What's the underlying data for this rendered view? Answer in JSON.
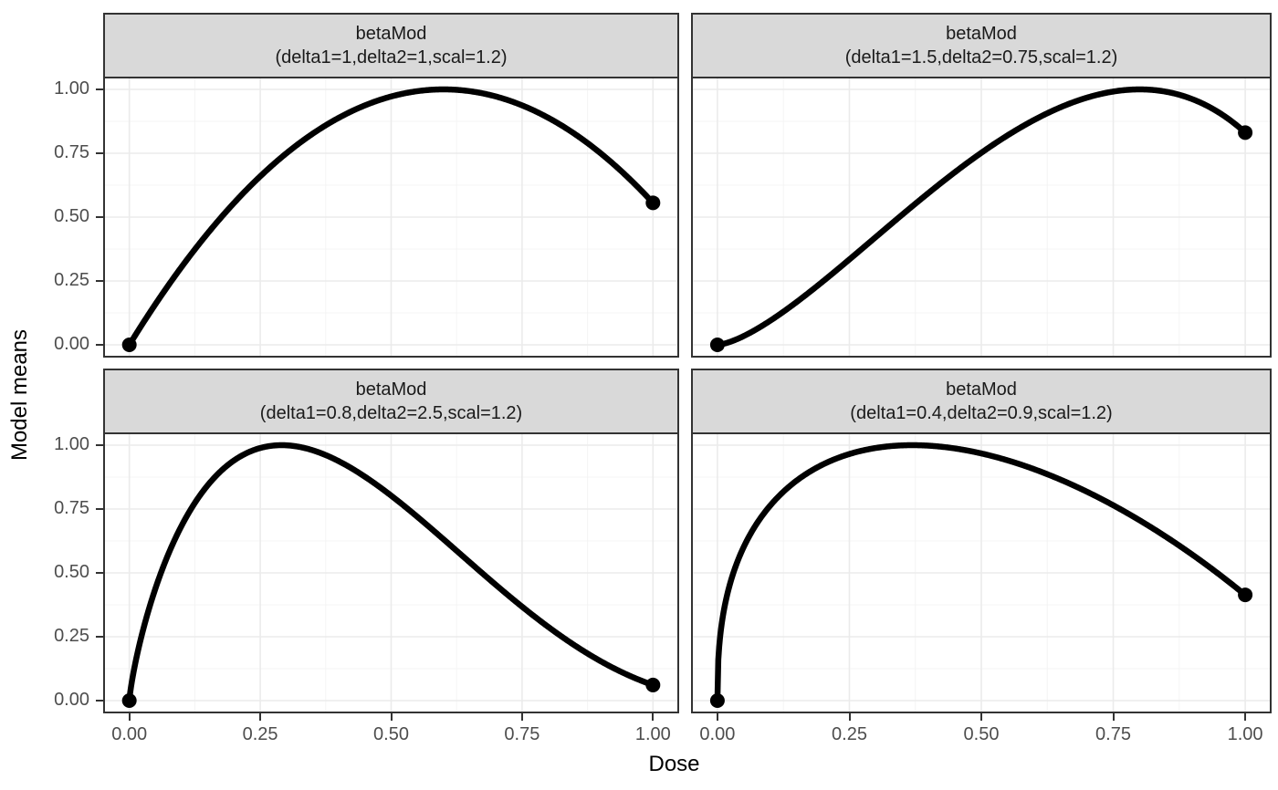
{
  "chart_data": {
    "type": "line",
    "title": "",
    "xlabel": "Dose",
    "ylabel": "Model means",
    "xlim": [
      0,
      1
    ],
    "ylim": [
      0,
      1
    ],
    "x_breaks": [
      0,
      0.25,
      0.5,
      0.75,
      1
    ],
    "y_breaks": [
      0,
      0.25,
      0.5,
      0.75,
      1
    ],
    "minor_breaks": [
      0.125,
      0.375,
      0.625,
      0.875
    ],
    "x_tick_labels": [
      "0.00",
      "0.25",
      "0.50",
      "0.75",
      "1.00"
    ],
    "y_tick_labels": [
      "0.00",
      "0.25",
      "0.50",
      "0.75",
      "1.00"
    ],
    "grid": "major+minor",
    "legend_position": "none",
    "facet_layout": "2x2",
    "facets": [
      {
        "strip_line1": "betaMod",
        "strip_line2": "(delta1=1,delta2=1,scal=1.2)",
        "model": "betaMod",
        "params": {
          "delta1": 1,
          "delta2": 1,
          "scal": 1.2
        },
        "points": [
          [
            0,
            0
          ],
          [
            1,
            0.556
          ]
        ],
        "key_curve_values": {
          "x": [
            0,
            0.25,
            0.5,
            0.75,
            1
          ],
          "y": [
            0,
            0.66,
            0.972,
            0.938,
            0.556
          ]
        },
        "peak": {
          "x": 0.6,
          "y": 1.0
        }
      },
      {
        "strip_line1": "betaMod",
        "strip_line2": "(delta1=1.5,delta2=0.75,scal=1.2)",
        "model": "betaMod",
        "params": {
          "delta1": 1.5,
          "delta2": 0.75,
          "scal": 1.2
        },
        "points": [
          [
            0,
            0
          ],
          [
            1,
            0.831
          ]
        ],
        "key_curve_values": {
          "x": [
            0,
            0.25,
            0.5,
            0.75,
            1
          ],
          "y": [
            0,
            0.334,
            0.752,
            0.992,
            0.831
          ]
        },
        "peak": {
          "x": 0.8,
          "y": 1.0
        }
      },
      {
        "strip_line1": "betaMod",
        "strip_line2": "(delta1=0.8,delta2=2.5,scal=1.2)",
        "model": "betaMod",
        "params": {
          "delta1": 0.8,
          "delta2": 2.5,
          "scal": 1.2
        },
        "points": [
          [
            0,
            0
          ],
          [
            1,
            0.061
          ]
        ],
        "key_curve_values": {
          "x": [
            0,
            0.25,
            0.5,
            0.75,
            1
          ],
          "y": [
            0,
            0.989,
            0.803,
            0.368,
            0.061
          ]
        },
        "peak": {
          "x": 0.291,
          "y": 1.0
        }
      },
      {
        "strip_line1": "betaMod",
        "strip_line2": "(delta1=0.4,delta2=0.9,scal=1.2)",
        "model": "betaMod",
        "params": {
          "delta1": 0.4,
          "delta2": 0.9,
          "scal": 1.2
        },
        "points": [
          [
            0,
            0
          ],
          [
            1,
            0.414
          ]
        ],
        "key_curve_values": {
          "x": [
            0,
            0.25,
            0.5,
            0.75,
            1
          ],
          "y": [
            0,
            0.966,
            0.968,
            0.765,
            0.414
          ]
        },
        "peak": {
          "x": 0.369,
          "y": 1.0
        }
      }
    ],
    "colors": {
      "curve": "#000000",
      "point": "#000000",
      "strip_fill": "#d9d9d9",
      "panel_border": "#333333",
      "grid_major": "#ebebeb",
      "grid_minor": "#f4f4f4",
      "tick_text": "#4d4d4d",
      "axis_title": "#000000",
      "background": "#ffffff"
    }
  }
}
